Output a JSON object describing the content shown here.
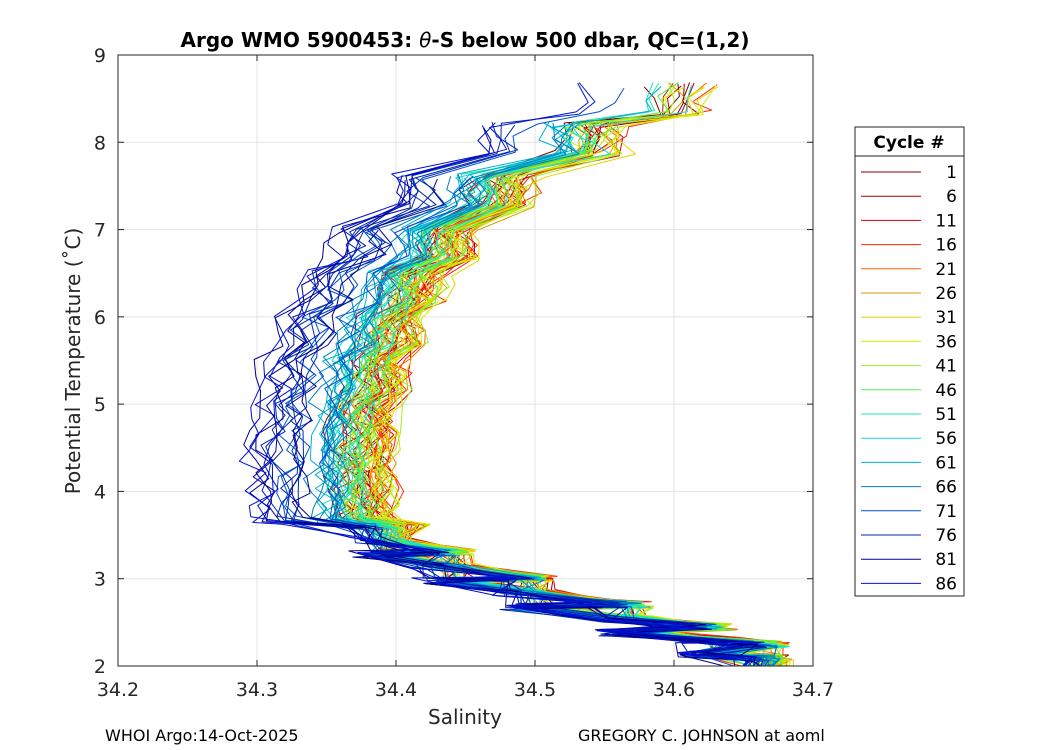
{
  "chart_data": {
    "type": "line",
    "title_prefix": "Argo WMO 5900453: ",
    "title_theta": "θ",
    "title_suffix": "-S below 500 dbar,  QC=(1,2)",
    "xlabel": "Salinity",
    "ylabel": "Potential Temperature (˚C)",
    "xlim": [
      34.2,
      34.7
    ],
    "ylim": [
      2,
      9
    ],
    "xticks": [
      "34.2",
      "34.3",
      "34.4",
      "34.5",
      "34.6",
      "34.7"
    ],
    "yticks": [
      "2",
      "3",
      "4",
      "5",
      "6",
      "7",
      "8",
      "9"
    ],
    "grid": true,
    "legend": {
      "title": "Cycle #",
      "placement": "right",
      "entries": [
        {
          "label": "1",
          "color": "#800000"
        },
        {
          "label": "6",
          "color": "#ad0000"
        },
        {
          "label": "11",
          "color": "#d90000"
        },
        {
          "label": "16",
          "color": "#ff2500"
        },
        {
          "label": "21",
          "color": "#ff6300"
        },
        {
          "label": "26",
          "color": "#d99a00"
        },
        {
          "label": "31",
          "color": "#e6d200"
        },
        {
          "label": "36",
          "color": "#d0f000"
        },
        {
          "label": "41",
          "color": "#a0f020"
        },
        {
          "label": "46",
          "color": "#50f050"
        },
        {
          "label": "51",
          "color": "#20e89a"
        },
        {
          "label": "56",
          "color": "#14dcdc"
        },
        {
          "label": "61",
          "color": "#00b0d0"
        },
        {
          "label": "66",
          "color": "#0080c0"
        },
        {
          "label": "71",
          "color": "#0050d0"
        },
        {
          "label": "76",
          "color": "#0028b0"
        },
        {
          "label": "81",
          "color": "#000090"
        },
        {
          "label": "86",
          "color": "#0010d0"
        }
      ]
    },
    "series_template": [
      {
        "theta": 8.65,
        "salinity": 34.6
      },
      {
        "theta": 8.2,
        "salinity": 34.535
      },
      {
        "theta": 7.6,
        "salinity": 34.47
      },
      {
        "theta": 7.0,
        "salinity": 34.43
      },
      {
        "theta": 6.5,
        "salinity": 34.405
      },
      {
        "theta": 6.0,
        "salinity": 34.39
      },
      {
        "theta": 5.5,
        "salinity": 34.38
      },
      {
        "theta": 5.0,
        "salinity": 34.372
      },
      {
        "theta": 4.5,
        "salinity": 34.37
      },
      {
        "theta": 4.0,
        "salinity": 34.372
      },
      {
        "theta": 3.6,
        "salinity": 34.395
      },
      {
        "theta": 3.3,
        "salinity": 34.44
      },
      {
        "theta": 3.0,
        "salinity": 34.5
      },
      {
        "theta": 2.7,
        "salinity": 34.57
      },
      {
        "theta": 2.45,
        "salinity": 34.63
      },
      {
        "theta": 2.25,
        "salinity": 34.67
      }
    ]
  },
  "footer": {
    "left": "WHOI Argo:14-Oct-2025",
    "right": "GREGORY C. JOHNSON at aoml"
  }
}
